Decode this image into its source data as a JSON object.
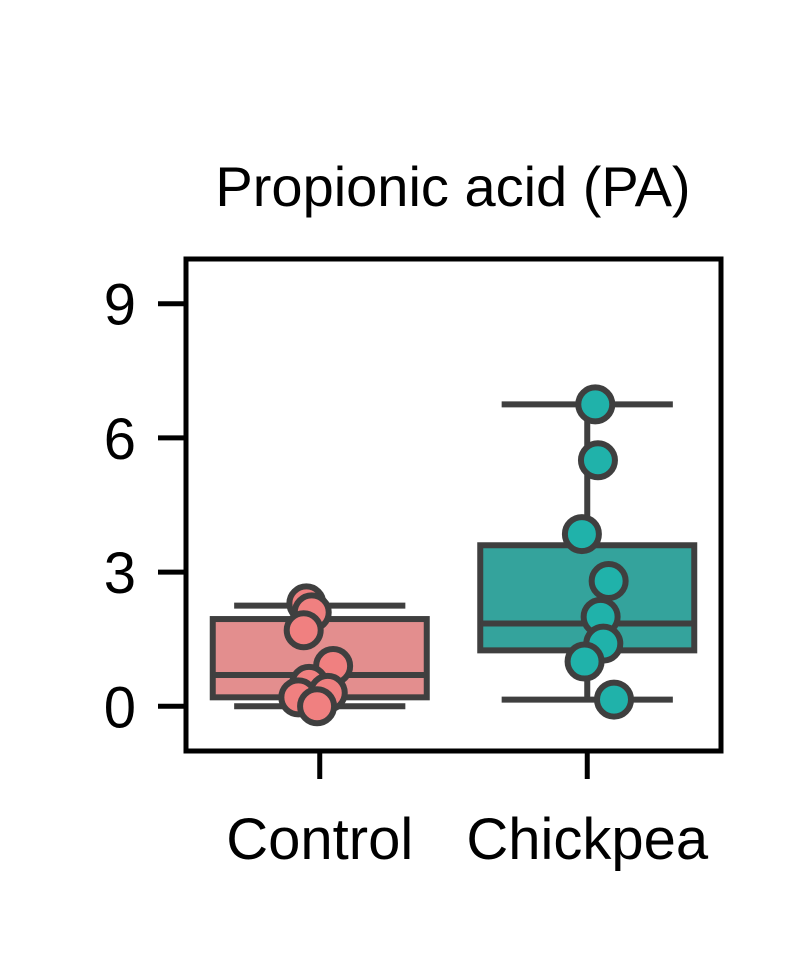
{
  "chart_data": {
    "type": "box",
    "title": "Propionic acid (PA)",
    "xlabel": "",
    "ylabel": "",
    "ylim": [
      -1,
      10
    ],
    "yticks": [
      0,
      3,
      6,
      9
    ],
    "categories": [
      "Control",
      "Chickpea"
    ],
    "boxes": [
      {
        "name": "Control",
        "color": "#E38E8E",
        "point_color": "#F08080",
        "whisker_low": 0.0,
        "q1": 0.2,
        "median": 0.7,
        "q3": 1.95,
        "whisker_high": 2.25,
        "points": [
          {
            "offset": -0.05,
            "value": 2.3
          },
          {
            "offset": -0.03,
            "value": 2.1
          },
          {
            "offset": -0.06,
            "value": 1.7
          },
          {
            "offset": 0.05,
            "value": 0.9
          },
          {
            "offset": -0.04,
            "value": 0.5
          },
          {
            "offset": -0.08,
            "value": 0.2
          },
          {
            "offset": 0.03,
            "value": 0.3
          },
          {
            "offset": -0.01,
            "value": 0.0
          }
        ]
      },
      {
        "name": "Chickpea",
        "color": "#34A39C",
        "point_color": "#20B2AA",
        "whisker_low": 0.15,
        "q1": 1.25,
        "median": 1.85,
        "q3": 3.6,
        "whisker_high": 6.75,
        "points": [
          {
            "offset": 0.03,
            "value": 6.75
          },
          {
            "offset": 0.04,
            "value": 5.5
          },
          {
            "offset": -0.02,
            "value": 3.85
          },
          {
            "offset": 0.08,
            "value": 2.8
          },
          {
            "offset": 0.05,
            "value": 2.0
          },
          {
            "offset": 0.06,
            "value": 1.4
          },
          {
            "offset": -0.01,
            "value": 1.0
          },
          {
            "offset": 0.1,
            "value": 0.15
          }
        ]
      }
    ]
  }
}
